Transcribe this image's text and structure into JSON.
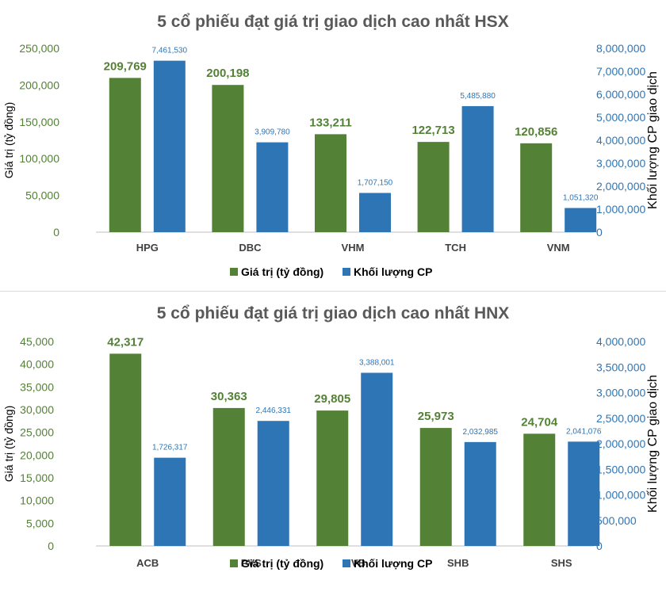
{
  "colors": {
    "value": "#538135",
    "volume": "#2E75B6",
    "title": "#595959",
    "axis_left": "#538135",
    "axis_right": "#2E75B6",
    "category": "#404040"
  },
  "chart_data": [
    {
      "type": "bar",
      "title": "5 cổ phiếu đạt giá trị giao dịch cao nhất HSX",
      "categories": [
        "HPG",
        "DBC",
        "VHM",
        "TCH",
        "VNM"
      ],
      "series": [
        {
          "name": "Giá trị (tỷ đồng)",
          "axis": "left",
          "values": [
            209769,
            200198,
            133211,
            122713,
            120856
          ],
          "labels": [
            "209,769",
            "200,198",
            "133,211",
            "122,713",
            "120,856"
          ]
        },
        {
          "name": "Khối lượng CP",
          "axis": "right",
          "values": [
            7461530,
            3909780,
            1707150,
            5485880,
            1051320
          ],
          "labels": [
            "7,461,530",
            "3,909,780",
            "1,707,150",
            "5,485,880",
            "1,051,320"
          ]
        }
      ],
      "ylabel": "Giá trị (tỷ đồng)",
      "y2label": "Khối lượng CP giao dịch",
      "ylim": [
        0,
        250000
      ],
      "y2lim": [
        0,
        8000000
      ],
      "yticks": [
        "0",
        "50,000",
        "100,000",
        "150,000",
        "200,000",
        "250,000"
      ],
      "y2ticks": [
        "0",
        "1,000,000",
        "2,000,000",
        "3,000,000",
        "4,000,000",
        "5,000,000",
        "6,000,000",
        "7,000,000",
        "8,000,000"
      ],
      "grid": false,
      "legend": "bottom"
    },
    {
      "type": "bar",
      "title": "5 cổ phiếu đạt giá trị giao dịch cao nhất HNX",
      "categories": [
        "ACB",
        "PVS",
        "NVB",
        "SHB",
        "SHS"
      ],
      "series": [
        {
          "name": "Giá trị (tỷ đồng)",
          "axis": "left",
          "values": [
            42317,
            30363,
            29805,
            25973,
            24704
          ],
          "labels": [
            "42,317",
            "30,363",
            "29,805",
            "25,973",
            "24,704"
          ]
        },
        {
          "name": "Khối lượng CP",
          "axis": "right",
          "values": [
            1726317,
            2446331,
            3388001,
            2032985,
            2041076
          ],
          "labels": [
            "1,726,317",
            "2,446,331",
            "3,388,001",
            "2,032,985",
            "2,041,076"
          ]
        }
      ],
      "ylabel": "Giá trị (tỷ đồng)",
      "y2label": "Khối lượng CP giao dịch",
      "ylim": [
        0,
        45000
      ],
      "y2lim": [
        0,
        4000000
      ],
      "yticks": [
        "0",
        "5,000",
        "10,000",
        "15,000",
        "20,000",
        "25,000",
        "30,000",
        "35,000",
        "40,000",
        "45,000"
      ],
      "y2ticks": [
        "0",
        "500,000",
        "1,000,000",
        "1,500,000",
        "2,000,000",
        "2,500,000",
        "3,000,000",
        "3,500,000",
        "4,000,000"
      ],
      "grid": false,
      "legend": "bottom"
    }
  ]
}
